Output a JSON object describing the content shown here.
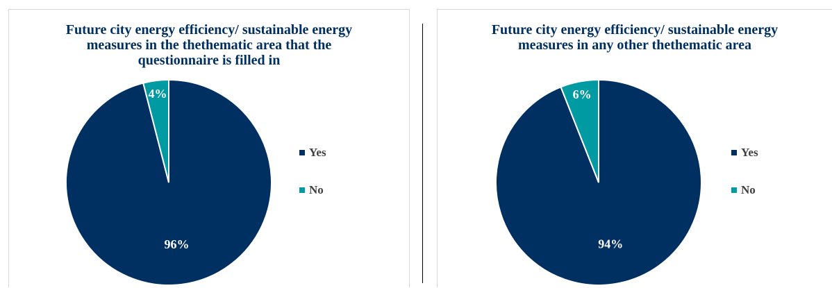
{
  "chart_data": [
    {
      "type": "pie",
      "title": "Future city energy efficiency/ sustainable energy measures in the thethematic area that the questionnaire is filled in",
      "categories": [
        "Yes",
        "No"
      ],
      "values": [
        96,
        4
      ],
      "labels": [
        "96%",
        "4%"
      ],
      "colors": [
        "#002f61",
        "#009aa2"
      ],
      "legend": "right"
    },
    {
      "type": "pie",
      "title": "Future city energy efficiency/ sustainable energy measures in any other thethematic area",
      "categories": [
        "Yes",
        "No"
      ],
      "values": [
        94,
        6
      ],
      "labels": [
        "94%",
        "6%"
      ],
      "colors": [
        "#002f61",
        "#009aa2"
      ],
      "legend": "right"
    }
  ]
}
